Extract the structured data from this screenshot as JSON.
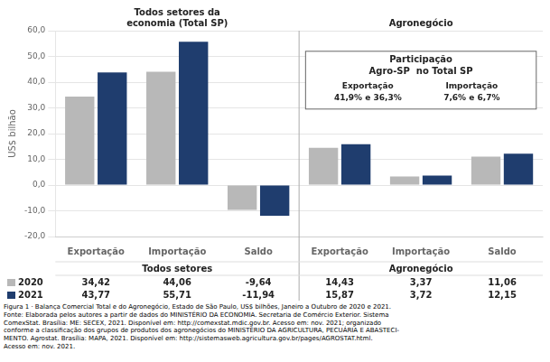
{
  "chart_data": {
    "type": "bar",
    "categories": [
      "Exportação",
      "Importação",
      "Saldo",
      "Exportação",
      "Importação",
      "Saldo"
    ],
    "series": [
      {
        "name": "2020",
        "color": "#b8b8b8",
        "values": [
          34.42,
          44.06,
          -9.64,
          14.43,
          3.37,
          11.06
        ],
        "value_labels": [
          "34,42",
          "44,06",
          "-9,64",
          "14,43",
          "3,37",
          "11,06"
        ]
      },
      {
        "name": "2021",
        "color": "#1f3d6e",
        "values": [
          43.77,
          55.71,
          -11.94,
          15.87,
          3.72,
          12.15
        ],
        "value_labels": [
          "43,77",
          "55,71",
          "-11,94",
          "15,87",
          "3,72",
          "12,15"
        ]
      }
    ],
    "y_label": "US$ bilhão",
    "ylim": [
      -20,
      60
    ],
    "yticks": [
      {
        "value": -20,
        "label": "-20,0"
      },
      {
        "value": -10,
        "label": "-10,0"
      },
      {
        "value": 0,
        "label": "0,0"
      },
      {
        "value": 10,
        "label": "10,0"
      },
      {
        "value": 20,
        "label": "20,0"
      },
      {
        "value": 30,
        "label": "30,0"
      },
      {
        "value": 40,
        "label": "40,0"
      },
      {
        "value": 50,
        "label": "50,0"
      },
      {
        "value": 60,
        "label": "60,0"
      }
    ],
    "grid": true,
    "data_labels": true,
    "annotations": [
      "Todos setores da\neconomia (Total SP)",
      "Agronegócio",
      "Todos setores",
      "Agronegócio",
      "Participação",
      "Agro-SP  no Total SP",
      "Exportação",
      "41,9% e 36,3%",
      "Importação",
      "7,6% e 6,7%"
    ],
    "caption": "Figura 1 · Balança Comercial Total e do Agronegócio, Estado de São Paulo, US$ bilhões, Janeiro a Outubro de 2020 e 2021.\nFonte: Elaborada pelos autores a partir de dados do MINISTÉRIO DA ECONOMIA. Secretaria de Comércio Exterior. Sistema\nComexStat. Brasília: ME: SECEX, 2021. Disponível em: http://comexstat.mdic.gov.br. Acesso em: nov. 2021; organizado\nconforme a classificação dos grupos de produtos dos agronegócios do MINISTÉRIO DA AGRICULTURA, PECUÁRIA E ABASTECI-\nMENTO. Agrostat.  Brasília: MAPA, 2021. Disponível em: http://sistemasweb.agricultura.gov.br/pages/AGROSTAT.html.\nAcesso em: nov. 2021."
  }
}
